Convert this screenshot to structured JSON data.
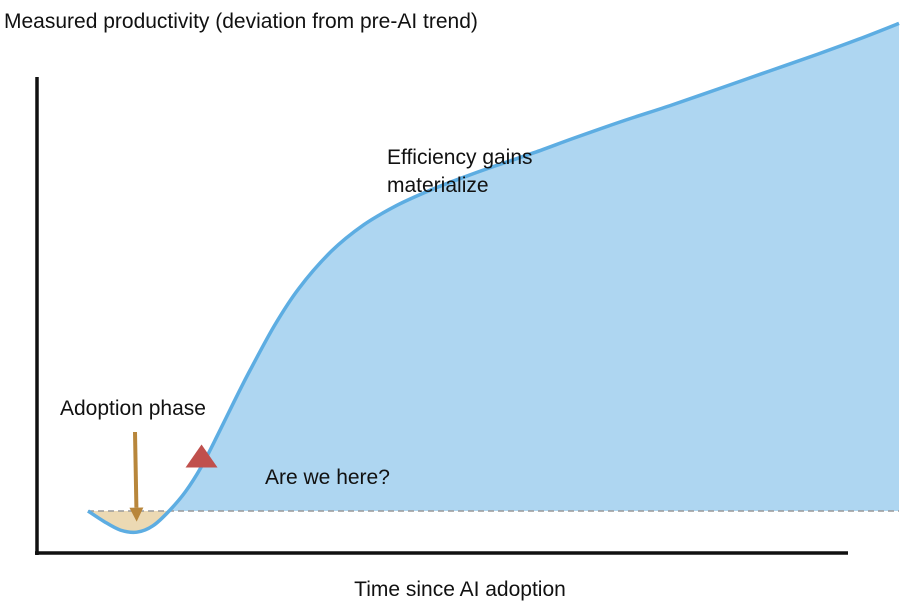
{
  "chart_data": {
    "type": "area",
    "title": "",
    "ylabel": "Measured productivity (deviation from pre-AI trend)",
    "xlabel": "Time since AI adoption",
    "baseline_y": 0,
    "xlim": [
      0,
      100
    ],
    "ylim": [
      -0.3,
      4.4
    ],
    "series": [
      {
        "x": [
          0,
          2,
          4,
          6,
          8,
          10,
          12,
          14,
          16,
          18,
          20,
          23,
          26,
          30,
          34,
          38,
          42,
          46,
          50,
          55,
          60,
          66,
          72,
          78,
          84,
          90,
          95,
          100
        ],
        "y": [
          0,
          -0.1,
          -0.18,
          -0.2,
          -0.14,
          0,
          0.18,
          0.42,
          0.72,
          1.03,
          1.33,
          1.75,
          2.1,
          2.45,
          2.7,
          2.88,
          3.02,
          3.14,
          3.25,
          3.38,
          3.52,
          3.68,
          3.83,
          3.99,
          4.15,
          4.31,
          4.45,
          4.6
        ]
      }
    ],
    "colors": {
      "line": "#5dade2",
      "area_above": "#aed6f1",
      "area_below": "#ecd9b3",
      "adoption_arrow": "#b8863b",
      "marker": "#c0504d",
      "baseline": "#999999",
      "axis": "#111111"
    },
    "annotations": [
      {
        "key": "adoption",
        "text": "Adoption phase",
        "target_x": 6,
        "target_y": -0.1
      },
      {
        "key": "here",
        "text": "Are we here?",
        "marker": "triangle",
        "marker_x": 14,
        "marker_y": 0.42
      },
      {
        "key": "gains_1",
        "text": "Efficiency gains",
        "x": 40,
        "y": 2.7
      },
      {
        "key": "gains_2",
        "text": "materialize",
        "x": 40,
        "y": 2.45
      }
    ]
  }
}
